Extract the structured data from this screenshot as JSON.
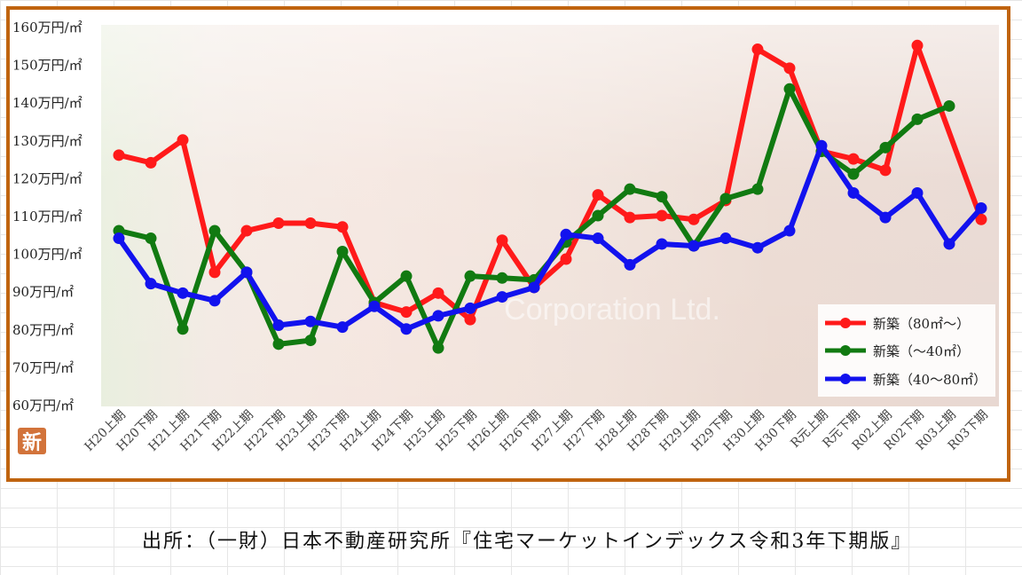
{
  "caption": "出所：（一財）日本不動産研究所『住宅マーケットインデックス令和3年下期版』",
  "badge": "新",
  "watermark": "Corporation Ltd.",
  "chart_data": {
    "type": "line",
    "title": "",
    "xlabel": "",
    "ylabel": "",
    "ylim": [
      60,
      160
    ],
    "yticks": [
      {
        "value": 160,
        "label": "160万円/㎡"
      },
      {
        "value": 150,
        "label": "150万円/㎡"
      },
      {
        "value": 140,
        "label": "140万円/㎡"
      },
      {
        "value": 130,
        "label": "130万円/㎡"
      },
      {
        "value": 120,
        "label": "120万円/㎡"
      },
      {
        "value": 110,
        "label": "110万円/㎡"
      },
      {
        "value": 100,
        "label": "100万円/㎡"
      },
      {
        "value": 90,
        "label": "90万円/㎡"
      },
      {
        "value": 80,
        "label": "80万円/㎡"
      },
      {
        "value": 70,
        "label": "70万円/㎡"
      },
      {
        "value": 60,
        "label": "60万円/㎡"
      }
    ],
    "categories": [
      "H20上期",
      "H20下期",
      "H21上期",
      "H21下期",
      "H22上期",
      "H22下期",
      "H23上期",
      "H23下期",
      "H24上期",
      "H24下期",
      "H25上期",
      "H25下期",
      "H26上期",
      "H26下期",
      "H27上期",
      "H27下期",
      "H28上期",
      "H28下期",
      "H29上期",
      "H29下期",
      "H30上期",
      "H30下期",
      "R元上期",
      "R元下期",
      "R02上期",
      "R02下期",
      "R03上期",
      "R03下期"
    ],
    "legend_position": "bottom-right",
    "grid": false,
    "series": [
      {
        "name": "新築（80㎡～）",
        "color": "#ff1a1a",
        "values": [
          126,
          124,
          130,
          95,
          106,
          108,
          108,
          107,
          87,
          84.5,
          89.5,
          82.5,
          103.5,
          91,
          98.5,
          115.5,
          109.5,
          110,
          109,
          114,
          154,
          149,
          127,
          125,
          122,
          155,
          null,
          109
        ]
      },
      {
        "name": "新築（～40㎡）",
        "color": "#117a11",
        "values": [
          106,
          104,
          80,
          106,
          95,
          76,
          77,
          100.5,
          87,
          94,
          75,
          94,
          93.5,
          93,
          103,
          110,
          117,
          115,
          102,
          114.5,
          117,
          143.5,
          127,
          121,
          128,
          135.5,
          139,
          null
        ]
      },
      {
        "name": "新築（40～80㎡）",
        "color": "#1212ee",
        "values": [
          104,
          92,
          89.5,
          87.5,
          95,
          81,
          82,
          80.5,
          86,
          80,
          83.5,
          85.5,
          88.5,
          91,
          105,
          104,
          97,
          102.5,
          102,
          104,
          101.5,
          106,
          128.5,
          116,
          109.5,
          116,
          102.5,
          112
        ]
      }
    ]
  }
}
